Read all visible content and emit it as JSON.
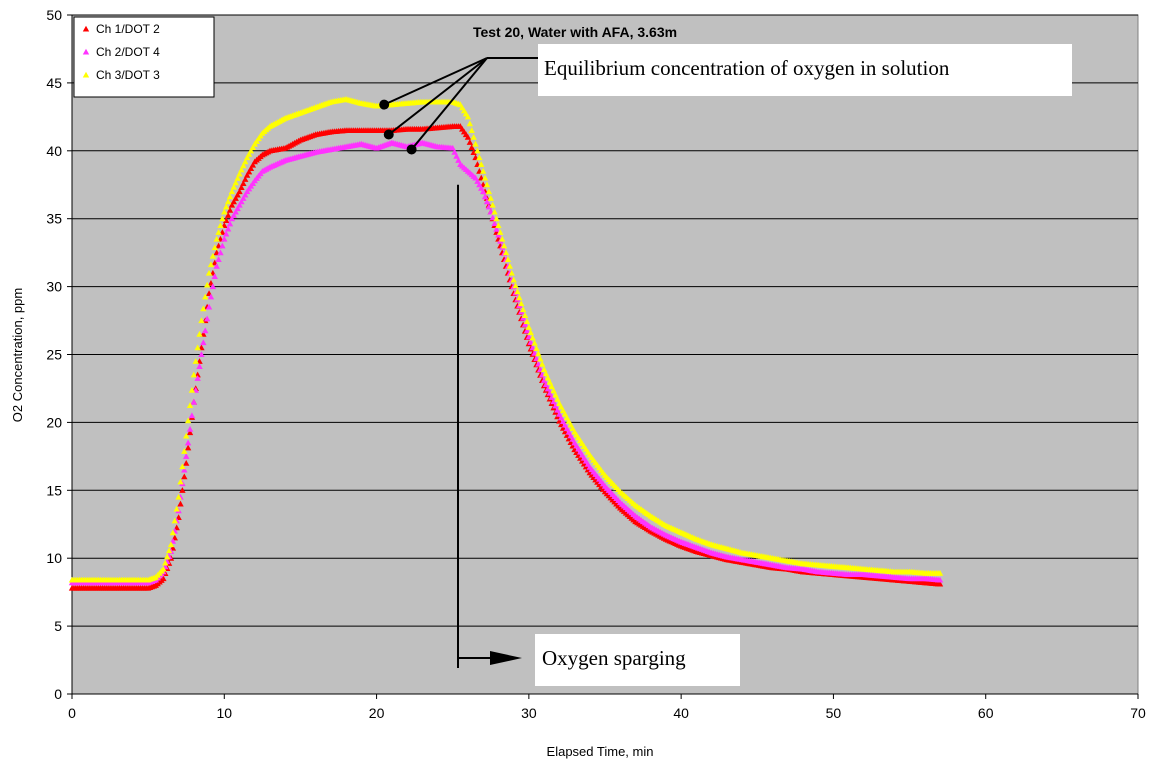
{
  "chart_data": {
    "type": "scatter",
    "title": "Test 20, Water with AFA, 3.63m",
    "xlabel": "Elapsed Time, min",
    "ylabel": "O2 Concentration, ppm",
    "xlim": [
      0,
      70
    ],
    "ylim": [
      0,
      50
    ],
    "xticks": [
      0,
      10,
      20,
      30,
      40,
      50,
      60,
      70
    ],
    "yticks": [
      0,
      5,
      10,
      15,
      20,
      25,
      30,
      35,
      40,
      45,
      50
    ],
    "grid": "horizontal",
    "legend_position": "top-left",
    "series": [
      {
        "name": "Ch 1/DOT 2",
        "color": "#ff0000",
        "marker": "triangle",
        "x": [
          0,
          1,
          2,
          3,
          4,
          5,
          5.5,
          6,
          6.5,
          7,
          7.5,
          8,
          8.5,
          9,
          9.5,
          10,
          10.5,
          11,
          11.5,
          12,
          12.5,
          13,
          14,
          15,
          16,
          17,
          18,
          19,
          20,
          21,
          22,
          23,
          24,
          25,
          25.5,
          26,
          26.5,
          27,
          27.5,
          28,
          28.5,
          29,
          30,
          31,
          32,
          33,
          34,
          35,
          36,
          37,
          38,
          39,
          40,
          41,
          42,
          43,
          44,
          45,
          46,
          47,
          48,
          49,
          50,
          51,
          52,
          53,
          54,
          55,
          56,
          57
        ],
        "y": [
          7.8,
          7.8,
          7.8,
          7.8,
          7.8,
          7.8,
          8.0,
          8.5,
          10.0,
          13.0,
          17.0,
          21.5,
          25.5,
          29.5,
          32.5,
          34.5,
          36.0,
          37.0,
          38.2,
          39.2,
          39.7,
          40.0,
          40.2,
          40.8,
          41.2,
          41.4,
          41.5,
          41.5,
          41.5,
          41.5,
          41.6,
          41.6,
          41.7,
          41.8,
          41.8,
          41.0,
          39.5,
          37.5,
          35.5,
          33.5,
          31.5,
          29.5,
          25.8,
          22.7,
          20.1,
          18.0,
          16.3,
          14.9,
          13.7,
          12.7,
          12.0,
          11.4,
          10.9,
          10.5,
          10.2,
          9.9,
          9.7,
          9.5,
          9.3,
          9.2,
          9.0,
          8.9,
          8.8,
          8.7,
          8.6,
          8.5,
          8.4,
          8.3,
          8.2,
          8.1
        ]
      },
      {
        "name": "Ch 2/DOT 4",
        "color": "#ff33ff",
        "marker": "triangle",
        "x": [
          0,
          1,
          2,
          3,
          4,
          5,
          5.5,
          6,
          6.5,
          7,
          7.5,
          8,
          8.5,
          9,
          9.5,
          10,
          10.5,
          11,
          11.5,
          12,
          12.5,
          13,
          14,
          15,
          16,
          17,
          18,
          19,
          20,
          21,
          22,
          23,
          24,
          25,
          25.5,
          26,
          26.5,
          27,
          27.5,
          28,
          28.5,
          29,
          30,
          31,
          32,
          33,
          34,
          35,
          36,
          37,
          38,
          39,
          40,
          41,
          42,
          43,
          44,
          45,
          46,
          47,
          48,
          49,
          50,
          51,
          52,
          53,
          54,
          55,
          56,
          57
        ],
        "y": [
          8.2,
          8.2,
          8.2,
          8.2,
          8.2,
          8.2,
          8.4,
          9.0,
          10.5,
          13.5,
          17.5,
          21.5,
          25.0,
          28.5,
          31.5,
          33.5,
          35.0,
          36.0,
          37.0,
          37.8,
          38.5,
          38.8,
          39.3,
          39.6,
          39.9,
          40.1,
          40.3,
          40.5,
          40.2,
          40.6,
          40.3,
          40.6,
          40.3,
          40.2,
          39.0,
          38.5,
          38.0,
          37.0,
          35.5,
          33.8,
          32.0,
          30.0,
          26.3,
          23.1,
          20.6,
          18.5,
          16.7,
          15.3,
          14.1,
          13.1,
          12.3,
          11.7,
          11.2,
          10.8,
          10.4,
          10.1,
          9.9,
          9.7,
          9.5,
          9.3,
          9.2,
          9.0,
          8.9,
          8.8,
          8.8,
          8.7,
          8.6,
          8.5,
          8.5,
          8.4
        ]
      },
      {
        "name": "Ch 3/DOT 3",
        "color": "#ffff00",
        "marker": "triangle",
        "x": [
          0,
          1,
          2,
          3,
          4,
          5,
          5.5,
          6,
          6.5,
          7,
          7.5,
          8,
          8.5,
          9,
          9.5,
          10,
          10.5,
          11,
          11.5,
          12,
          12.5,
          13,
          14,
          15,
          16,
          17,
          18,
          19,
          20,
          21,
          22,
          23,
          24,
          25,
          25.5,
          26,
          26.5,
          27,
          27.5,
          28,
          28.5,
          29,
          30,
          31,
          32,
          33,
          34,
          35,
          36,
          37,
          38,
          39,
          40,
          41,
          42,
          43,
          44,
          45,
          46,
          47,
          48,
          49,
          50,
          51,
          52,
          53,
          54,
          55,
          56,
          57
        ],
        "y": [
          8.4,
          8.4,
          8.4,
          8.4,
          8.4,
          8.4,
          8.6,
          9.2,
          11.0,
          14.5,
          19.0,
          23.5,
          27.5,
          31.0,
          33.5,
          35.5,
          37.0,
          38.3,
          39.5,
          40.5,
          41.3,
          41.8,
          42.4,
          42.8,
          43.2,
          43.6,
          43.8,
          43.5,
          43.3,
          43.4,
          43.5,
          43.6,
          43.6,
          43.6,
          43.4,
          42.5,
          40.5,
          38.5,
          36.5,
          34.5,
          32.5,
          30.5,
          27.0,
          23.9,
          21.4,
          19.3,
          17.6,
          16.1,
          14.9,
          13.9,
          13.1,
          12.4,
          11.9,
          11.4,
          11.0,
          10.7,
          10.4,
          10.2,
          10.0,
          9.8,
          9.6,
          9.5,
          9.4,
          9.3,
          9.2,
          9.1,
          9.0,
          9.0,
          8.9,
          8.9
        ]
      }
    ],
    "annotations": [
      {
        "text": "Equilibrium concentration of oxygen in solution"
      },
      {
        "text": "Oxygen sparging"
      }
    ]
  }
}
